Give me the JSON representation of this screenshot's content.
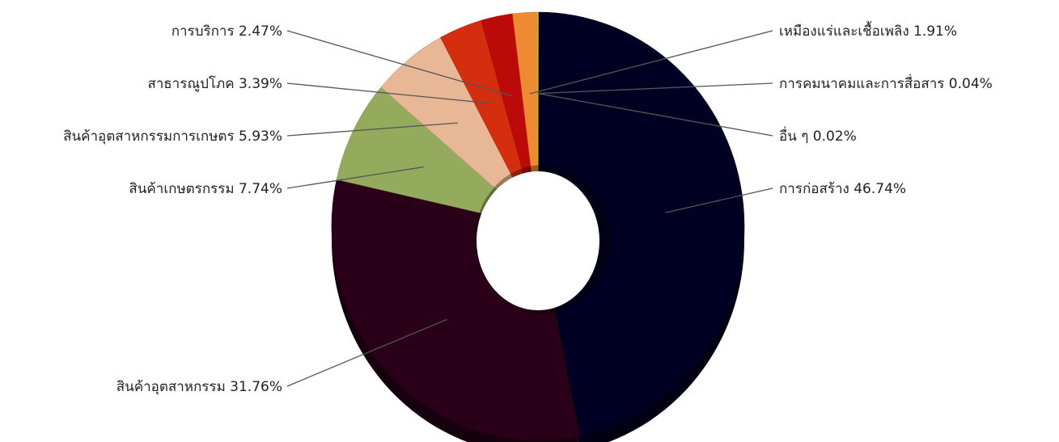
{
  "chart_data": {
    "type": "pie",
    "title": "",
    "slices": [
      {
        "label": "การก่อสร้าง",
        "value": 46.74,
        "display": "การก่อสร้าง 46.74%",
        "color": "#000022",
        "side": "right"
      },
      {
        "label": "สินค้าอุตสาหกรรม",
        "value": 31.76,
        "display": "สินค้าอุตสาหกรรม 31.76%",
        "color": "#2a0019",
        "side": "left"
      },
      {
        "label": "สินค้าเกษตรกรรม",
        "value": 7.74,
        "display": "สินค้าเกษตรกรรม 7.74%",
        "color": "#94aa5c",
        "side": "left"
      },
      {
        "label": "สินค้าอุตสาหกรรมการเกษตร",
        "value": 5.93,
        "display": "สินค้าอุตสาหกรรมการเกษตร 5.93%",
        "color": "#e8b896",
        "side": "left"
      },
      {
        "label": "สาธารณูปโภค",
        "value": 3.39,
        "display": "สาธารณูปโภค 3.39%",
        "color": "#d52e0e",
        "side": "left"
      },
      {
        "label": "การบริการ",
        "value": 2.47,
        "display": "การบริการ 2.47%",
        "color": "#bb0a08",
        "side": "left"
      },
      {
        "label": "เหมืองแร่และเชื้อเพลิง",
        "value": 1.91,
        "display": "เหมืองแร่และเชื้อเพลิง 1.91%",
        "color": "#ee8a32",
        "side": "right"
      },
      {
        "label": "การคมนาคมและการสื่อสาร",
        "value": 0.04,
        "display": "การคมนาคมและการสื่อสาร 0.04%",
        "color": "#d8d830",
        "side": "right"
      },
      {
        "label": "อื่นๆ",
        "value": 0.02,
        "display": "อื่น ๆ 0.02%",
        "color": "#f0e040",
        "side": "right"
      }
    ],
    "legend": "none",
    "style": "3d-donut"
  }
}
